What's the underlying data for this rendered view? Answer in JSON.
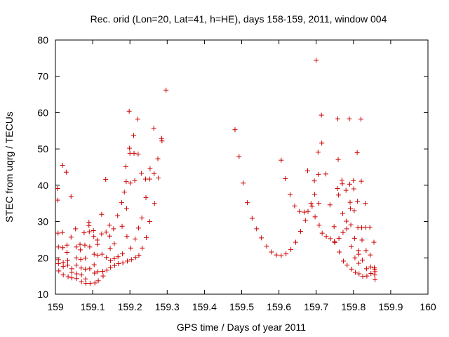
{
  "chart_data": {
    "type": "scatter",
    "title": "Rec. orid (Lon=20, Lat=41, h=HE), days 158-159, 2011, window 004",
    "xlabel": "GPS time / Days of year 2011",
    "ylabel": "STEC from uqrg / TECUs",
    "xlim": [
      159,
      160
    ],
    "ylim": [
      10,
      80
    ],
    "xticks": [
      159,
      159.1,
      159.2,
      159.3,
      159.4,
      159.5,
      159.6,
      159.7,
      159.8,
      159.9,
      160
    ],
    "xtick_labels": [
      "159",
      "159.1",
      "159.2",
      "159.3",
      "159.4",
      "159.5",
      "159.6",
      "159.7",
      "159.8",
      "159.9",
      "160"
    ],
    "yticks": [
      10,
      20,
      30,
      40,
      50,
      60,
      70,
      80
    ],
    "ytick_labels": [
      "10",
      "20",
      "30",
      "40",
      "50",
      "60",
      "70",
      "80"
    ],
    "marker": "+",
    "marker_color": "#cc0000",
    "points": [
      [
        159.006,
        39.1
      ],
      [
        159.006,
        35.9
      ],
      [
        159.007,
        26.8
      ],
      [
        159.008,
        23.0
      ],
      [
        159.008,
        19.5
      ],
      [
        159.008,
        18.4
      ],
      [
        159.009,
        16.4
      ],
      [
        159.019,
        45.5
      ],
      [
        159.019,
        27.0
      ],
      [
        159.02,
        22.8
      ],
      [
        159.021,
        18.7
      ],
      [
        159.021,
        17.6
      ],
      [
        159.021,
        15.3
      ],
      [
        159.029,
        43.6
      ],
      [
        159.031,
        23.5
      ],
      [
        159.031,
        21.5
      ],
      [
        159.033,
        19.3
      ],
      [
        159.033,
        18.0
      ],
      [
        159.034,
        14.8
      ],
      [
        159.042,
        36.9
      ],
      [
        159.042,
        25.7
      ],
      [
        159.044,
        17.0
      ],
      [
        159.044,
        16.0
      ],
      [
        159.044,
        14.5
      ],
      [
        159.054,
        28.0
      ],
      [
        159.056,
        23.0
      ],
      [
        159.056,
        20.0
      ],
      [
        159.056,
        18.0
      ],
      [
        159.057,
        15.6
      ],
      [
        159.057,
        14.3
      ],
      [
        159.066,
        23.7
      ],
      [
        159.067,
        22.2
      ],
      [
        159.068,
        19.6
      ],
      [
        159.069,
        17.2
      ],
      [
        159.07,
        15.3
      ],
      [
        159.07,
        13.4
      ],
      [
        159.077,
        26.9
      ],
      [
        159.079,
        23.5
      ],
      [
        159.08,
        19.9
      ],
      [
        159.08,
        16.9
      ],
      [
        159.081,
        14.2
      ],
      [
        159.082,
        13.0
      ],
      [
        159.09,
        29.8
      ],
      [
        159.09,
        28.9
      ],
      [
        159.091,
        27.2
      ],
      [
        159.092,
        23.0
      ],
      [
        159.092,
        17.0
      ],
      [
        159.093,
        13.0
      ],
      [
        159.102,
        27.5
      ],
      [
        159.103,
        25.9
      ],
      [
        159.104,
        21.0
      ],
      [
        159.104,
        18.1
      ],
      [
        159.105,
        15.8
      ],
      [
        159.106,
        13.1
      ],
      [
        159.112,
        24.9
      ],
      [
        159.113,
        23.7
      ],
      [
        159.114,
        20.7
      ],
      [
        159.114,
        16.2
      ],
      [
        159.115,
        13.7
      ],
      [
        159.124,
        32.0
      ],
      [
        159.124,
        26.6
      ],
      [
        159.125,
        21.0
      ],
      [
        159.127,
        16.3
      ],
      [
        159.128,
        15.0
      ],
      [
        159.135,
        41.6
      ],
      [
        159.136,
        27.1
      ],
      [
        159.137,
        20.1
      ],
      [
        159.138,
        16.6
      ],
      [
        159.145,
        29.0
      ],
      [
        159.146,
        26.0
      ],
      [
        159.147,
        22.6
      ],
      [
        159.148,
        19.2
      ],
      [
        159.148,
        17.4
      ],
      [
        159.156,
        28.0
      ],
      [
        159.158,
        23.9
      ],
      [
        159.158,
        19.8
      ],
      [
        159.159,
        17.9
      ],
      [
        159.167,
        31.6
      ],
      [
        159.168,
        20.3
      ],
      [
        159.169,
        18.4
      ],
      [
        159.178,
        35.2
      ],
      [
        159.179,
        28.7
      ],
      [
        159.18,
        21.1
      ],
      [
        159.181,
        18.6
      ],
      [
        159.185,
        38.1
      ],
      [
        159.189,
        45.1
      ],
      [
        159.19,
        41.0
      ],
      [
        159.191,
        33.6
      ],
      [
        159.192,
        25.9
      ],
      [
        159.193,
        19.1
      ],
      [
        159.198,
        60.4
      ],
      [
        159.199,
        50.2
      ],
      [
        159.2,
        48.8
      ],
      [
        159.201,
        40.6
      ],
      [
        159.202,
        22.7
      ],
      [
        159.204,
        19.5
      ],
      [
        159.21,
        53.7
      ],
      [
        159.211,
        48.8
      ],
      [
        159.213,
        41.3
      ],
      [
        159.214,
        25.2
      ],
      [
        159.215,
        20.1
      ],
      [
        159.221,
        58.2
      ],
      [
        159.222,
        48.6
      ],
      [
        159.223,
        28.2
      ],
      [
        159.224,
        20.7
      ],
      [
        159.231,
        43.3
      ],
      [
        159.232,
        31.0
      ],
      [
        159.233,
        22.7
      ],
      [
        159.242,
        41.7
      ],
      [
        159.243,
        36.6
      ],
      [
        159.244,
        25.6
      ],
      [
        159.253,
        41.7
      ],
      [
        159.253,
        30.0
      ],
      [
        159.254,
        44.6
      ],
      [
        159.264,
        55.7
      ],
      [
        159.265,
        43.2
      ],
      [
        159.266,
        35.0
      ],
      [
        159.275,
        47.3
      ],
      [
        159.276,
        42.0
      ],
      [
        159.285,
        52.9
      ],
      [
        159.286,
        52.2
      ],
      [
        159.297,
        66.2
      ],
      [
        159.482,
        55.3
      ],
      [
        159.493,
        47.9
      ],
      [
        159.504,
        40.6
      ],
      [
        159.515,
        35.2
      ],
      [
        159.528,
        30.9
      ],
      [
        159.54,
        28.0
      ],
      [
        159.553,
        25.5
      ],
      [
        159.567,
        23.2
      ],
      [
        159.58,
        21.6
      ],
      [
        159.593,
        20.8
      ],
      [
        159.606,
        46.9
      ],
      [
        159.606,
        20.6
      ],
      [
        159.617,
        41.8
      ],
      [
        159.619,
        21.1
      ],
      [
        159.63,
        37.4
      ],
      [
        159.632,
        22.3
      ],
      [
        159.642,
        34.3
      ],
      [
        159.645,
        24.3
      ],
      [
        159.655,
        32.8
      ],
      [
        159.658,
        27.3
      ],
      [
        159.668,
        32.6
      ],
      [
        159.671,
        30.3
      ],
      [
        159.677,
        44.0
      ],
      [
        159.678,
        32.8
      ],
      [
        159.686,
        35.0
      ],
      [
        159.689,
        34.2
      ],
      [
        159.695,
        41.2
      ],
      [
        159.696,
        37.5
      ],
      [
        159.697,
        31.3
      ],
      [
        159.7,
        74.4
      ],
      [
        159.705,
        49.1
      ],
      [
        159.706,
        43.0
      ],
      [
        159.707,
        35.0
      ],
      [
        159.708,
        29.0
      ],
      [
        159.714,
        59.3
      ],
      [
        159.715,
        51.6
      ],
      [
        159.716,
        26.8
      ],
      [
        159.726,
        43.1
      ],
      [
        159.727,
        25.9
      ],
      [
        159.737,
        34.6
      ],
      [
        159.738,
        25.3
      ],
      [
        159.748,
        28.6
      ],
      [
        159.749,
        24.6
      ],
      [
        159.75,
        24.2
      ],
      [
        159.757,
        39.1
      ],
      [
        159.758,
        58.3
      ],
      [
        159.759,
        47.1
      ],
      [
        159.76,
        37.3
      ],
      [
        159.761,
        25.4
      ],
      [
        159.762,
        21.6
      ],
      [
        159.769,
        41.4
      ],
      [
        159.77,
        40.4
      ],
      [
        159.771,
        32.2
      ],
      [
        159.772,
        27.0
      ],
      [
        159.773,
        19.1
      ],
      [
        159.78,
        38.6
      ],
      [
        159.781,
        30.1
      ],
      [
        159.782,
        28.0
      ],
      [
        159.783,
        18.0
      ],
      [
        159.789,
        58.3
      ],
      [
        159.79,
        40.3
      ],
      [
        159.791,
        35.3
      ],
      [
        159.792,
        33.6
      ],
      [
        159.793,
        29.1
      ],
      [
        159.794,
        23.1
      ],
      [
        159.795,
        16.9
      ],
      [
        159.8,
        41.3
      ],
      [
        159.801,
        39.0
      ],
      [
        159.802,
        33.0
      ],
      [
        159.803,
        25.4
      ],
      [
        159.804,
        20.0
      ],
      [
        159.805,
        16.0
      ],
      [
        159.81,
        49.0
      ],
      [
        159.811,
        35.6
      ],
      [
        159.812,
        28.3
      ],
      [
        159.813,
        22.0
      ],
      [
        159.814,
        21.0
      ],
      [
        159.814,
        18.5
      ],
      [
        159.815,
        15.6
      ],
      [
        159.82,
        58.2
      ],
      [
        159.821,
        41.1
      ],
      [
        159.822,
        28.3
      ],
      [
        159.823,
        24.9
      ],
      [
        159.824,
        19.4
      ],
      [
        159.825,
        14.9
      ],
      [
        159.832,
        35.0
      ],
      [
        159.833,
        28.4
      ],
      [
        159.834,
        22.0
      ],
      [
        159.835,
        17.0
      ],
      [
        159.836,
        15.0
      ],
      [
        159.844,
        28.4
      ],
      [
        159.845,
        20.8
      ],
      [
        159.846,
        17.5
      ],
      [
        159.847,
        15.7
      ],
      [
        159.855,
        24.3
      ],
      [
        159.856,
        17.3
      ],
      [
        159.857,
        15.3
      ],
      [
        159.858,
        14.0
      ],
      [
        159.857,
        16.9
      ],
      [
        159.858,
        16.2
      ]
    ]
  }
}
